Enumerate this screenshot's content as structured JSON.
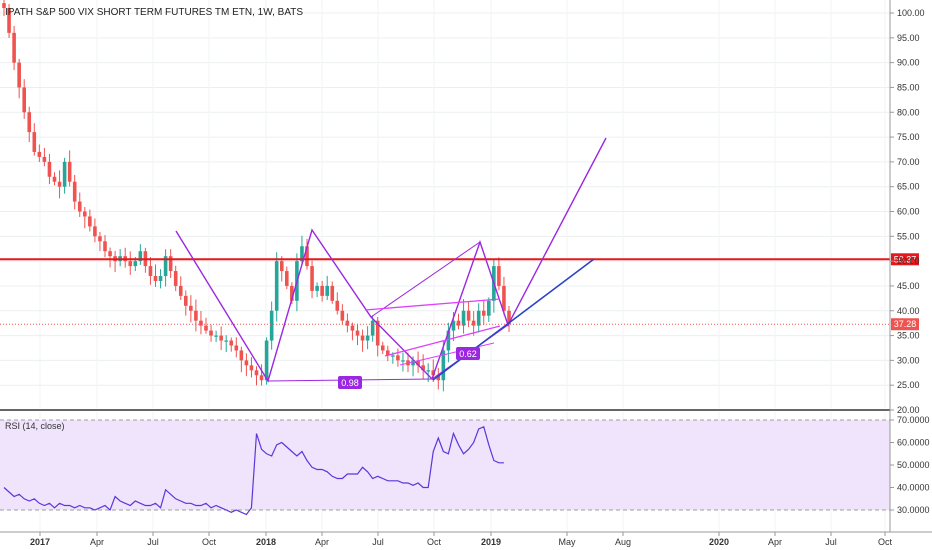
{
  "title": "IPATH S&P 500 VIX SHORT TERM FUTURES TM ETN, 1W, BATS",
  "rsi_label": "RSI (14, close)",
  "colors": {
    "up": "#26a69a",
    "down": "#ef5350",
    "resistance": "#e5191d",
    "pattern": "#9c27e0",
    "channel": "#e040fb",
    "trend": "#2b44c8",
    "rsi_line": "#5e35d9",
    "rsi_fill": "#efe4fb",
    "badge": "#9c27e0",
    "last_price": "#ef5350"
  },
  "chart_data": [
    {
      "type": "candlestick",
      "y_ticks": [
        "100.00",
        "95.00",
        "90.00",
        "85.00",
        "80.00",
        "75.00",
        "70.00",
        "65.00",
        "60.00",
        "55.00",
        "50.00",
        "45.00",
        "40.00",
        "35.00",
        "30.00",
        "25.00",
        "20.00"
      ],
      "ylim": [
        20,
        102
      ],
      "x_ticks": [
        "2017",
        "Apr",
        "Jul",
        "Oct",
        "2018",
        "Apr",
        "Jul",
        "Oct",
        "2019",
        "May",
        "Aug",
        "2020",
        "Apr",
        "Jul",
        "Oct"
      ],
      "resistance_level": 50.37,
      "resistance_label": "50.37",
      "last_price": 37.28,
      "last_price_label": "37.28",
      "annotations": [
        {
          "text": "0.98"
        },
        {
          "text": "0.62"
        }
      ],
      "close_series": [
        101,
        96,
        90,
        85,
        80,
        76,
        72,
        71,
        70,
        67,
        66,
        65,
        70,
        66,
        62,
        60,
        59,
        57,
        55,
        54,
        52,
        51,
        50,
        51,
        50,
        49,
        50,
        52,
        49,
        47,
        46,
        47,
        51,
        48,
        45,
        43,
        41,
        40,
        38,
        37,
        36,
        35,
        35,
        34,
        34,
        33,
        32,
        30,
        29,
        28,
        27,
        26,
        34,
        40,
        50,
        48,
        45,
        42,
        50,
        53,
        49,
        44,
        45,
        43,
        45,
        42,
        40,
        38,
        37,
        36,
        35,
        34,
        35,
        38,
        33,
        32,
        31,
        31,
        30,
        30,
        29,
        30,
        29,
        28,
        28,
        27,
        26,
        32,
        36,
        38,
        37,
        40,
        38,
        37,
        40,
        39,
        42,
        49,
        45,
        40,
        37.28
      ]
    },
    {
      "type": "line",
      "name": "RSI",
      "y_ticks": [
        "70.0000",
        "60.0000",
        "50.0000",
        "40.0000",
        "30.0000"
      ],
      "ylim": [
        25,
        72
      ],
      "values": [
        40,
        38,
        36,
        37,
        35,
        34,
        35,
        33,
        32,
        33,
        31,
        33,
        32,
        32,
        31,
        32,
        31,
        31,
        30,
        31,
        32,
        30,
        36,
        34,
        33,
        32,
        34,
        33,
        32,
        32,
        33,
        31,
        39,
        37,
        35,
        34,
        33,
        33,
        32,
        32,
        33,
        31,
        32,
        31,
        30,
        29,
        30,
        29,
        28,
        31,
        64,
        57,
        55,
        54,
        59,
        60,
        58,
        56,
        54,
        56,
        52,
        49,
        48,
        48,
        47,
        45,
        44,
        44,
        46,
        46,
        46,
        49,
        47,
        44,
        45,
        44,
        43,
        43,
        43,
        42,
        42,
        41,
        42,
        40,
        40,
        56,
        62,
        56,
        55,
        64,
        59,
        55,
        57,
        60,
        66,
        67,
        59,
        52,
        51,
        51
      ]
    }
  ]
}
